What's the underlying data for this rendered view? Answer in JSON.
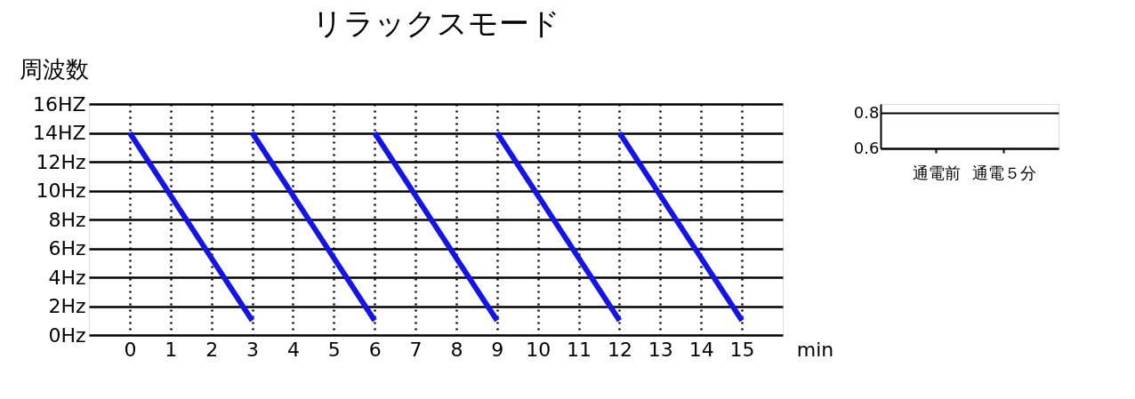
{
  "chart_data": [
    {
      "type": "line",
      "title": "リラックスモード",
      "ylabel": "周波数",
      "xlabel": "min",
      "series": [
        {
          "color": "#1414e6",
          "x": [
            0,
            3
          ],
          "values": [
            14,
            1
          ]
        },
        {
          "color": "#1414e6",
          "x": [
            3,
            6
          ],
          "values": [
            14,
            1
          ]
        },
        {
          "color": "#1414e6",
          "x": [
            6,
            9
          ],
          "values": [
            14,
            1
          ]
        },
        {
          "color": "#1414e6",
          "x": [
            9,
            12
          ],
          "values": [
            14,
            1
          ]
        },
        {
          "color": "#1414e6",
          "x": [
            12,
            15
          ],
          "values": [
            14,
            1
          ]
        }
      ],
      "xlim": [
        -1,
        16
      ],
      "xticks": [
        0,
        1,
        2,
        3,
        4,
        5,
        6,
        7,
        8,
        9,
        10,
        11,
        12,
        13,
        14,
        15
      ],
      "ylim": [
        0,
        16
      ],
      "yticks": [
        {
          "value": 0,
          "label": "0Hz"
        },
        {
          "value": 2,
          "label": "2Hz"
        },
        {
          "value": 4,
          "label": "4Hz"
        },
        {
          "value": 6,
          "label": "6Hz"
        },
        {
          "value": 8,
          "label": "8Hz"
        },
        {
          "value": 10,
          "label": "10Hz"
        },
        {
          "value": 12,
          "label": "12Hz"
        },
        {
          "value": 14,
          "label": "14HZ"
        },
        {
          "value": 16,
          "label": "16HZ"
        }
      ],
      "grid": true,
      "marker": "none",
      "line_style": "solid",
      "legend": false
    },
    {
      "type": "bar",
      "categories": [
        "通電前",
        "通電５分"
      ],
      "values": [
        null,
        null
      ],
      "ylim": [
        0.6,
        0.85
      ],
      "yticks": [
        0.6,
        0.8
      ],
      "grid": "y"
    }
  ]
}
